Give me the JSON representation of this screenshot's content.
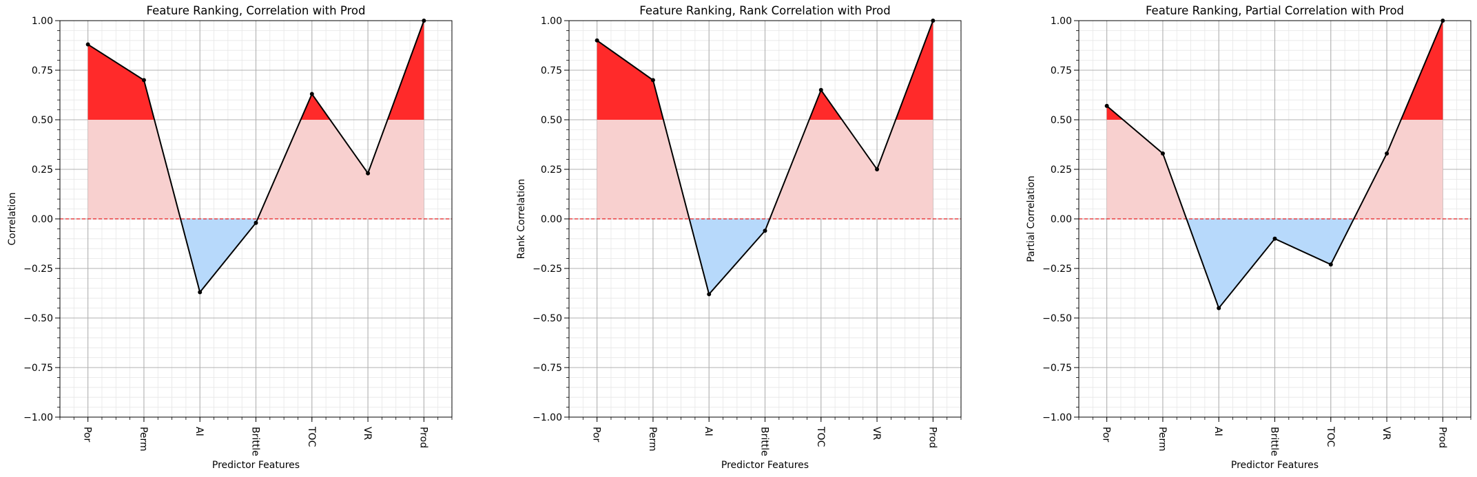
{
  "chart_data": [
    {
      "type": "line",
      "title": "Feature Ranking, Correlation with Prod",
      "xlabel": "Predictor Features",
      "ylabel": "Correlation",
      "categories": [
        "Por",
        "Perm",
        "AI",
        "Brittle",
        "TOC",
        "VR",
        "Prod"
      ],
      "values": [
        0.88,
        0.7,
        -0.37,
        -0.02,
        0.63,
        0.23,
        1.0
      ],
      "ylim": [
        -1.0,
        1.0
      ],
      "yticks": [
        "−1.00",
        "−0.75",
        "−0.50",
        "−0.25",
        "0.00",
        "0.25",
        "0.50",
        "0.75",
        "1.00"
      ],
      "threshold": 0.5,
      "grid": true
    },
    {
      "type": "line",
      "title": "Feature Ranking, Rank Correlation with Prod",
      "xlabel": "Predictor Features",
      "ylabel": "Rank Correlation",
      "categories": [
        "Por",
        "Perm",
        "AI",
        "Brittle",
        "TOC",
        "VR",
        "Prod"
      ],
      "values": [
        0.9,
        0.7,
        -0.38,
        -0.06,
        0.65,
        0.25,
        1.0
      ],
      "ylim": [
        -1.0,
        1.0
      ],
      "yticks": [
        "−1.00",
        "−0.75",
        "−0.50",
        "−0.25",
        "0.00",
        "0.25",
        "0.50",
        "0.75",
        "1.00"
      ],
      "threshold": 0.5,
      "grid": true
    },
    {
      "type": "line",
      "title": "Feature Ranking, Partial Correlation with Prod",
      "xlabel": "Predictor Features",
      "ylabel": "Partial Correlation",
      "categories": [
        "Por",
        "Perm",
        "AI",
        "Brittle",
        "TOC",
        "VR",
        "Prod"
      ],
      "values": [
        0.57,
        0.33,
        -0.45,
        -0.1,
        -0.23,
        0.33,
        1.0
      ],
      "ylim": [
        -1.0,
        1.0
      ],
      "yticks": [
        "−1.00",
        "−0.75",
        "−0.50",
        "−0.25",
        "0.00",
        "0.25",
        "0.50",
        "0.75",
        "1.00"
      ],
      "threshold": 0.5,
      "grid": true
    }
  ],
  "colors": {
    "strong": "#ff2a2a",
    "positive": "#f8d0cf",
    "negative": "#b7d9fb",
    "line": "#000000",
    "zero_line": "#e31a1c",
    "major_grid": "#b0b0b0",
    "minor_grid": "#e6e6e6"
  }
}
